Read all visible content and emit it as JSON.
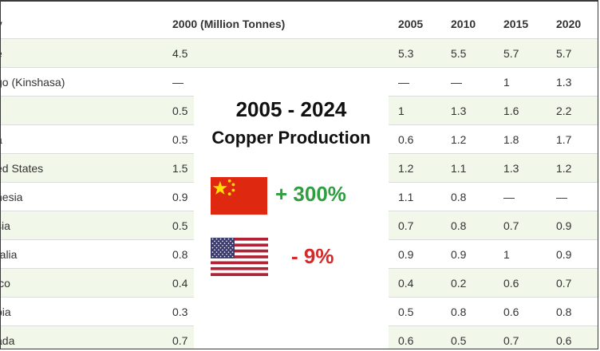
{
  "table": {
    "headers": [
      "y",
      "2000 (Million Tonnes)",
      "2005",
      "2010",
      "2015",
      "2020"
    ],
    "rows": [
      [
        "e",
        "4.5",
        "5.3",
        "5.5",
        "5.7",
        "5.7"
      ],
      [
        "go (Kinshasa)",
        "—",
        "—",
        "—",
        "1",
        "1.3"
      ],
      [
        "",
        "0.5",
        "1",
        "1.3",
        "1.6",
        "2.2"
      ],
      [
        "a",
        "0.5",
        "0.6",
        "1.2",
        "1.8",
        "1.7"
      ],
      [
        "ed States",
        "1.5",
        "1.2",
        "1.1",
        "1.3",
        "1.2"
      ],
      [
        "nesia",
        "0.9",
        "1.1",
        "0.8",
        "—",
        "—"
      ],
      [
        "sia",
        "0.5",
        "0.7",
        "0.8",
        "0.7",
        "0.9"
      ],
      [
        "ralia",
        "0.8",
        "0.9",
        "0.9",
        "1",
        "0.9"
      ],
      [
        "ico",
        "0.4",
        "0.4",
        "0.2",
        "0.6",
        "0.7"
      ],
      [
        "bia",
        "0.3",
        "0.5",
        "0.8",
        "0.6",
        "0.8"
      ],
      [
        "ada",
        "0.7",
        "0.6",
        "0.5",
        "0.7",
        "0.6"
      ]
    ]
  },
  "overlay": {
    "title": "2005 - 2024",
    "subtitle": "Copper Production",
    "china_change": "+ 300%",
    "us_change": "- 9%",
    "china_flag_icon": "china-flag-icon",
    "us_flag_icon": "us-flag-icon"
  },
  "colors": {
    "row_shade": "#f1f8e9",
    "positive": "#2e9e3e",
    "negative": "#d42a2a",
    "china_red": "#de2910",
    "china_star": "#ffde00",
    "us_red": "#b22234",
    "us_blue": "#3c3b6e"
  }
}
